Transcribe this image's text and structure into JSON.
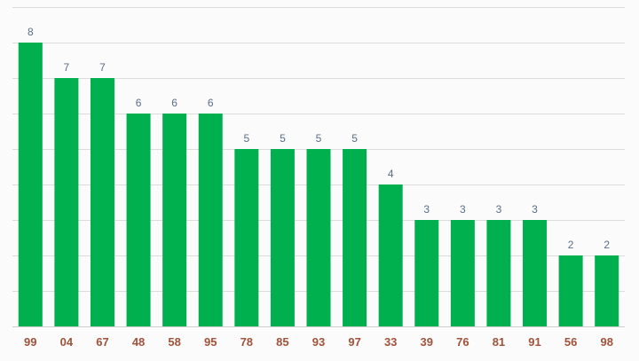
{
  "chart_data": {
    "type": "bar",
    "title": "",
    "xlabel": "",
    "ylabel": "",
    "categories": [
      "99",
      "04",
      "67",
      "48",
      "58",
      "95",
      "78",
      "85",
      "93",
      "97",
      "33",
      "39",
      "76",
      "81",
      "91",
      "56",
      "98"
    ],
    "values": [
      8,
      7,
      7,
      6,
      6,
      6,
      5,
      5,
      5,
      5,
      4,
      3,
      3,
      3,
      3,
      2,
      2
    ],
    "ylim": [
      0,
      9
    ],
    "grid": true,
    "data_labels": true,
    "colors": {
      "bar": "#00b04f",
      "bar_label": "#5a6e86",
      "tick_label": "#a0523a",
      "grid": "#dcdcdc"
    }
  }
}
